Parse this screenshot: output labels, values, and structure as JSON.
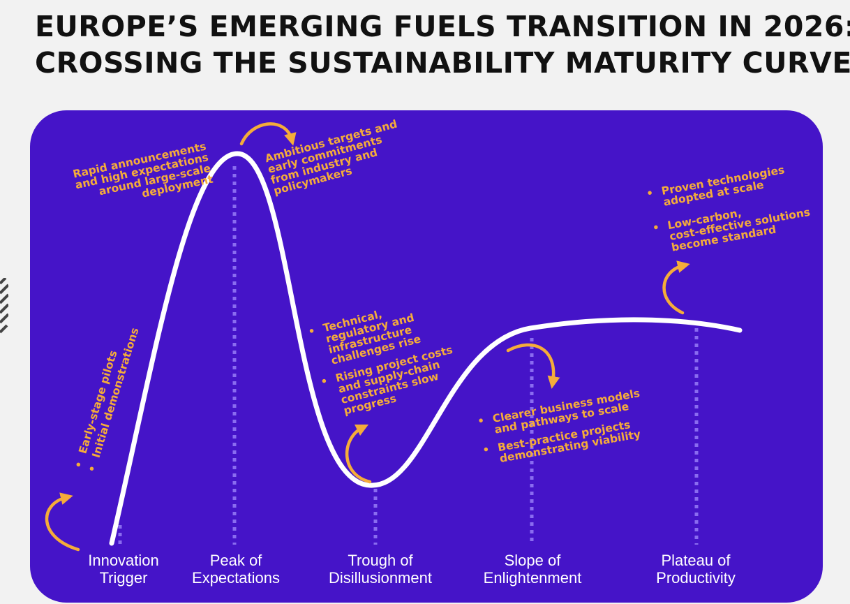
{
  "title": {
    "line1": "EUROPE’S EMERGING FUELS TRANSITION IN 2026:",
    "line2": "CROSSING THE SUSTAINABILITY MATURITY CURVE"
  },
  "colors": {
    "background": "#f2f2f2",
    "panel": "#4514c8",
    "curve": "#ffffff",
    "accent": "#f5ac3a",
    "guide": "#8a6cf0",
    "title": "#111111"
  },
  "phases": [
    {
      "line1": "Innovation",
      "line2": "Trigger"
    },
    {
      "line1": "Peak of",
      "line2": "Expectations"
    },
    {
      "line1": "Trough of",
      "line2": "Disillusionment"
    },
    {
      "line1": "Slope of",
      "line2": "Enlightenment"
    },
    {
      "line1": "Plateau of",
      "line2": "Productivity"
    }
  ],
  "notes": {
    "innovation": [
      "Early-stage pilots",
      "Initial demonstrations"
    ],
    "rising": [
      "Rapid announcements",
      "and high expectations",
      "around large-scale",
      "deployment"
    ],
    "peak": [
      "Ambitious targets and",
      "early commitments",
      "from industry and",
      "policymakers"
    ],
    "trough": {
      "b1": [
        "Technical,",
        "regulatory and",
        "infrastructure",
        "challenges rise"
      ],
      "b2": [
        "Rising project costs",
        "and supply-chain",
        "constraints slow",
        "progress"
      ]
    },
    "slope": {
      "b1": [
        "Clearer business models",
        "and pathways to scale"
      ],
      "b2": [
        "Best-practice projects",
        "demonstrating viability"
      ]
    },
    "plateau": {
      "b1": [
        "Proven technologies",
        "adopted at scale"
      ],
      "b2": [
        "Low-carbon,",
        "cost-effective solutions",
        "become standard"
      ]
    }
  }
}
